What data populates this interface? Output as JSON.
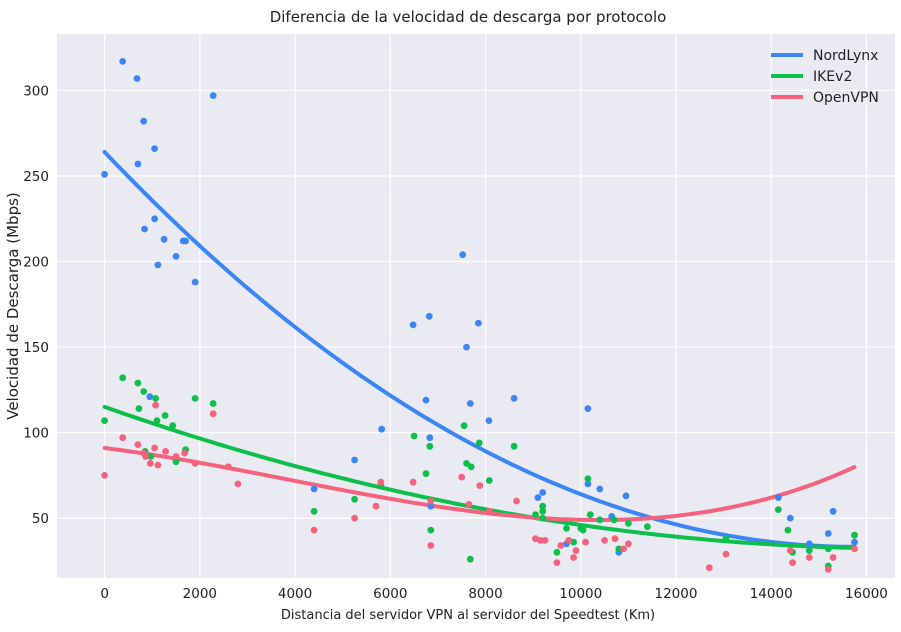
{
  "chart_data": {
    "type": "scatter",
    "title": "Diferencia de la velocidad de descarga por protocolo",
    "xlabel": "Distancia del servidor VPN al servidor del Speedtest (Km)",
    "ylabel": "Velocidad de Descarga (Mbps)",
    "xlim": [
      -1000,
      16600
    ],
    "ylim": [
      15,
      333
    ],
    "x_ticks": [
      0,
      2000,
      4000,
      6000,
      8000,
      10000,
      12000,
      14000,
      16000
    ],
    "y_ticks": [
      50,
      100,
      150,
      200,
      250,
      300
    ],
    "grid": true,
    "legend_position": "top-right",
    "background": "#eaeaf2",
    "series": [
      {
        "name": "NordLynx",
        "color": "#3a86f5",
        "points": [
          [
            0,
            251
          ],
          [
            380,
            317
          ],
          [
            680,
            307
          ],
          [
            700,
            257
          ],
          [
            820,
            282
          ],
          [
            840,
            219
          ],
          [
            1050,
            266
          ],
          [
            1050,
            225
          ],
          [
            1120,
            198
          ],
          [
            1250,
            213
          ],
          [
            1500,
            203
          ],
          [
            1650,
            212
          ],
          [
            1700,
            212
          ],
          [
            1900,
            188
          ],
          [
            2280,
            297
          ],
          [
            950,
            121
          ],
          [
            4400,
            67
          ],
          [
            5250,
            84
          ],
          [
            5820,
            102
          ],
          [
            6480,
            163
          ],
          [
            6750,
            119
          ],
          [
            6820,
            168
          ],
          [
            6830,
            97
          ],
          [
            6850,
            57
          ],
          [
            7520,
            204
          ],
          [
            7600,
            150
          ],
          [
            7680,
            117
          ],
          [
            7850,
            164
          ],
          [
            8070,
            107
          ],
          [
            8600,
            120
          ],
          [
            9100,
            62
          ],
          [
            9200,
            65
          ],
          [
            9700,
            35
          ],
          [
            10150,
            114
          ],
          [
            10150,
            70
          ],
          [
            10400,
            67
          ],
          [
            10650,
            51
          ],
          [
            10800,
            30
          ],
          [
            10950,
            63
          ],
          [
            14150,
            62
          ],
          [
            14400,
            50
          ],
          [
            14800,
            35
          ],
          [
            15200,
            41
          ],
          [
            15300,
            54
          ],
          [
            15750,
            36
          ]
        ],
        "trend": [
          264,
          -0.0293,
          9.3e-07
        ]
      },
      {
        "name": "IKEv2",
        "color": "#0dbf4b",
        "points": [
          [
            0,
            107
          ],
          [
            380,
            132
          ],
          [
            700,
            129
          ],
          [
            720,
            114
          ],
          [
            820,
            124
          ],
          [
            850,
            89
          ],
          [
            970,
            86
          ],
          [
            1070,
            120
          ],
          [
            1100,
            107
          ],
          [
            1270,
            110
          ],
          [
            1430,
            104
          ],
          [
            1500,
            83
          ],
          [
            1700,
            90
          ],
          [
            1900,
            120
          ],
          [
            2280,
            117
          ],
          [
            4400,
            54
          ],
          [
            5250,
            61
          ],
          [
            5800,
            69
          ],
          [
            6500,
            98
          ],
          [
            6750,
            76
          ],
          [
            6830,
            92
          ],
          [
            6850,
            43
          ],
          [
            7550,
            104
          ],
          [
            7600,
            82
          ],
          [
            7700,
            80
          ],
          [
            7680,
            26
          ],
          [
            7870,
            94
          ],
          [
            8080,
            72
          ],
          [
            8600,
            92
          ],
          [
            9050,
            52
          ],
          [
            9200,
            57
          ],
          [
            9200,
            54
          ],
          [
            9200,
            50
          ],
          [
            9500,
            30
          ],
          [
            9700,
            44
          ],
          [
            9850,
            36
          ],
          [
            10000,
            44
          ],
          [
            10050,
            43
          ],
          [
            10150,
            73
          ],
          [
            10200,
            52
          ],
          [
            10400,
            49
          ],
          [
            10700,
            49
          ],
          [
            10800,
            32
          ],
          [
            11000,
            47
          ],
          [
            11400,
            45
          ],
          [
            13050,
            38
          ],
          [
            14150,
            55
          ],
          [
            14350,
            43
          ],
          [
            14450,
            30
          ],
          [
            14800,
            31
          ],
          [
            15200,
            32
          ],
          [
            15200,
            22
          ],
          [
            15750,
            40
          ]
        ],
        "trend": [
          115,
          -0.0098,
          2.9e-07
        ]
      },
      {
        "name": "OpenVPN",
        "color": "#f6617c",
        "points": [
          [
            0,
            75
          ],
          [
            380,
            97
          ],
          [
            700,
            93
          ],
          [
            820,
            88
          ],
          [
            860,
            86
          ],
          [
            960,
            82
          ],
          [
            1050,
            91
          ],
          [
            1070,
            116
          ],
          [
            1120,
            81
          ],
          [
            1280,
            89
          ],
          [
            1500,
            86
          ],
          [
            1680,
            88
          ],
          [
            1900,
            82
          ],
          [
            2280,
            111
          ],
          [
            2600,
            80
          ],
          [
            2800,
            70
          ],
          [
            4400,
            43
          ],
          [
            5250,
            50
          ],
          [
            5700,
            57
          ],
          [
            5800,
            71
          ],
          [
            6480,
            71
          ],
          [
            6850,
            60
          ],
          [
            6850,
            34
          ],
          [
            7500,
            74
          ],
          [
            7650,
            58
          ],
          [
            7880,
            69
          ],
          [
            8080,
            54
          ],
          [
            8650,
            60
          ],
          [
            9050,
            38
          ],
          [
            9150,
            37
          ],
          [
            9250,
            37
          ],
          [
            9500,
            24
          ],
          [
            9580,
            34
          ],
          [
            9750,
            37
          ],
          [
            9850,
            27
          ],
          [
            9900,
            31
          ],
          [
            10100,
            36
          ],
          [
            10500,
            37
          ],
          [
            10720,
            38
          ],
          [
            10900,
            32
          ],
          [
            11000,
            35
          ],
          [
            12700,
            21
          ],
          [
            13050,
            29
          ],
          [
            14400,
            31
          ],
          [
            14450,
            24
          ],
          [
            14800,
            27
          ],
          [
            15200,
            20
          ],
          [
            15300,
            27
          ],
          [
            15750,
            32
          ]
        ],
        "trend": [
          91,
          -0.0035,
          -5e-07,
          4.3e-11
        ]
      }
    ]
  }
}
